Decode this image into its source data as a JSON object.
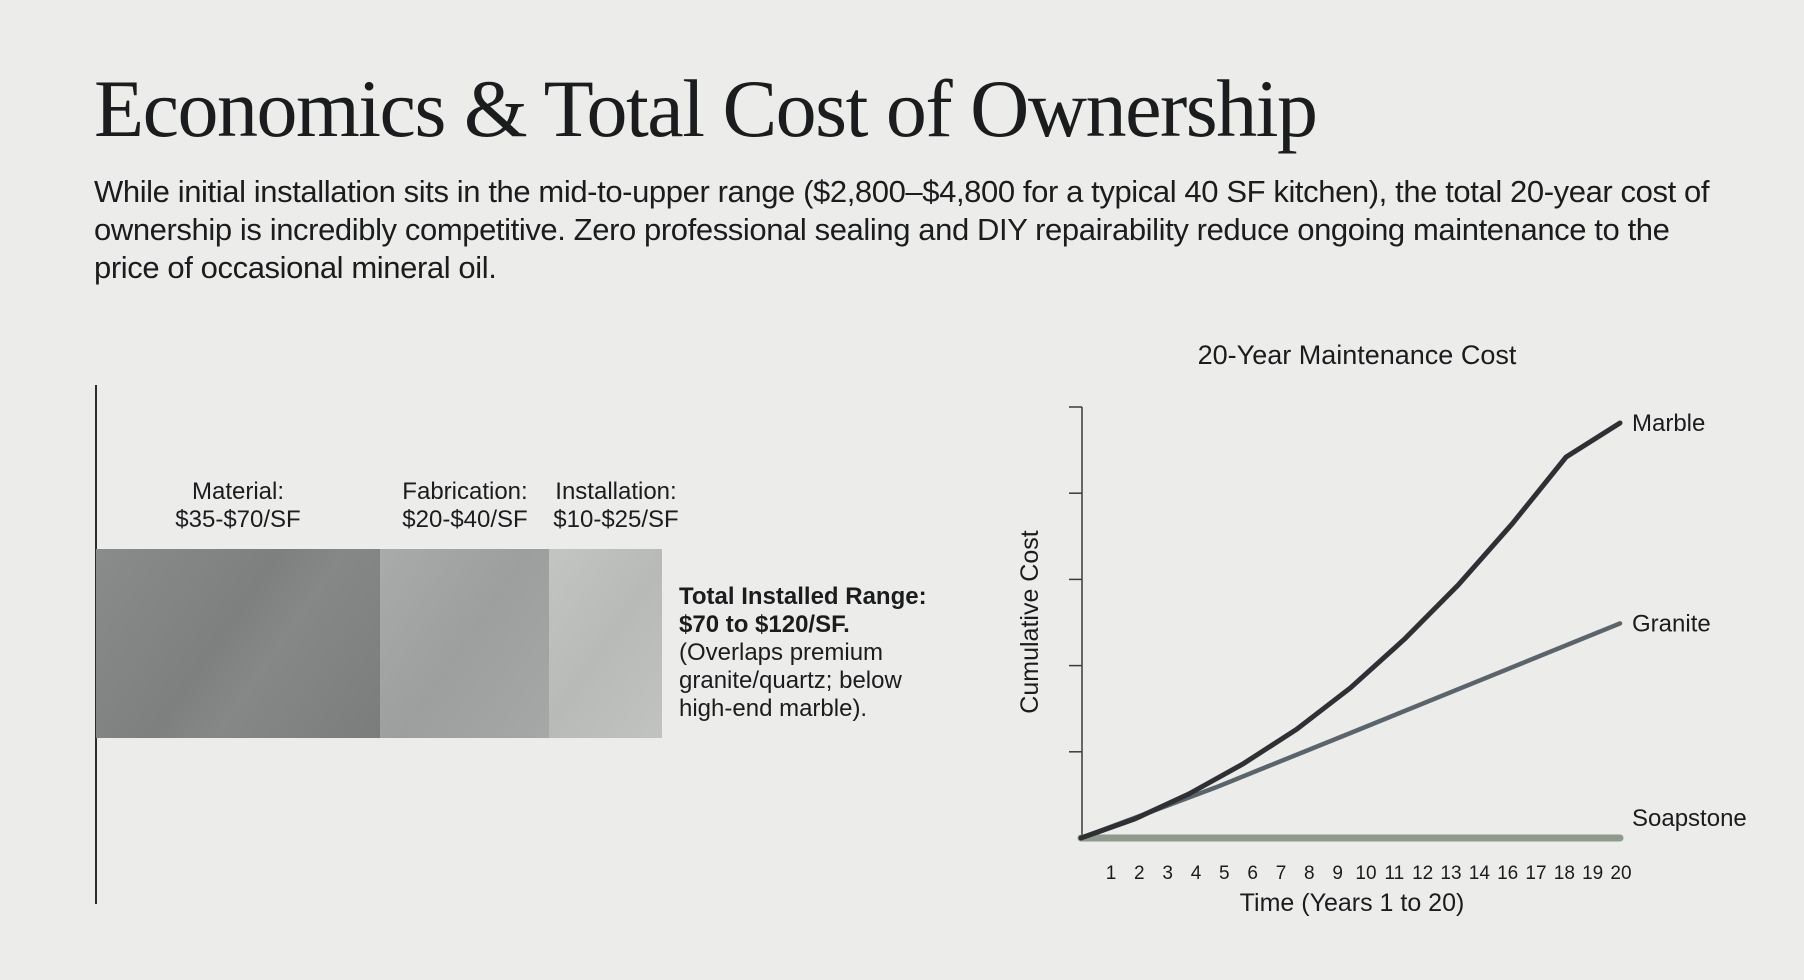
{
  "slide": {
    "title": "Economics & Total Cost of Ownership",
    "intro": "While initial installation sits in the mid-to-upper range ($2,800–$4,800 for a typical 40 SF kitchen), the total 20-year cost of ownership is incredibly competitive. Zero professional sealing and DIY repairability reduce ongoing maintenance to the price of occasional mineral oil."
  },
  "cost_breakdown": {
    "segments": [
      {
        "name": "Material:",
        "range": "$35-$70/SF"
      },
      {
        "name": "Fabrication:",
        "range": "$20-$40/SF"
      },
      {
        "name": "Installation:",
        "range": "$10-$25/SF"
      }
    ],
    "total_label": "Total Installed Range:",
    "total_value": "$70 to $120/SF.",
    "total_note_lines": [
      "(Overlaps premium",
      "granite/quartz; below",
      "high-end marble)."
    ],
    "colors": {
      "material": "#828383",
      "fabrication": "#a3a5a5",
      "installation": "#bdbfbd"
    }
  },
  "chart_data": {
    "type": "line",
    "title": "20-Year Maintenance Cost",
    "xlabel": "Time (Years 1 to 20)",
    "ylabel": "Cumulative Cost",
    "x_tick_labels": [
      "1",
      "2",
      "3",
      "4",
      "5",
      "6",
      "7",
      "8",
      "9",
      "10",
      "11",
      "12",
      "13",
      "14",
      "16",
      "17",
      "18",
      "19",
      "20"
    ],
    "xlim": [
      0,
      20
    ],
    "ylim": [
      0,
      1
    ],
    "y_tick_count": 5,
    "y_tick_labels": [],
    "series": [
      {
        "name": "Marble",
        "color": "#2e3034",
        "x": [
          0,
          2,
          4,
          6,
          8,
          10,
          12,
          14,
          16,
          18,
          20
        ],
        "y": [
          0,
          0.046,
          0.106,
          0.178,
          0.262,
          0.362,
          0.479,
          0.61,
          0.757,
          0.918,
          1.0
        ]
      },
      {
        "name": "Granite",
        "color": "#5c646b",
        "x": [
          0,
          5,
          10,
          15,
          20
        ],
        "y": [
          0,
          0.122,
          0.253,
          0.385,
          0.517
        ]
      },
      {
        "name": "Soapstone",
        "color": "#8e9a8d",
        "x": [
          0,
          5,
          10,
          15,
          20
        ],
        "y": [
          0,
          0,
          0,
          0,
          0
        ]
      }
    ]
  }
}
